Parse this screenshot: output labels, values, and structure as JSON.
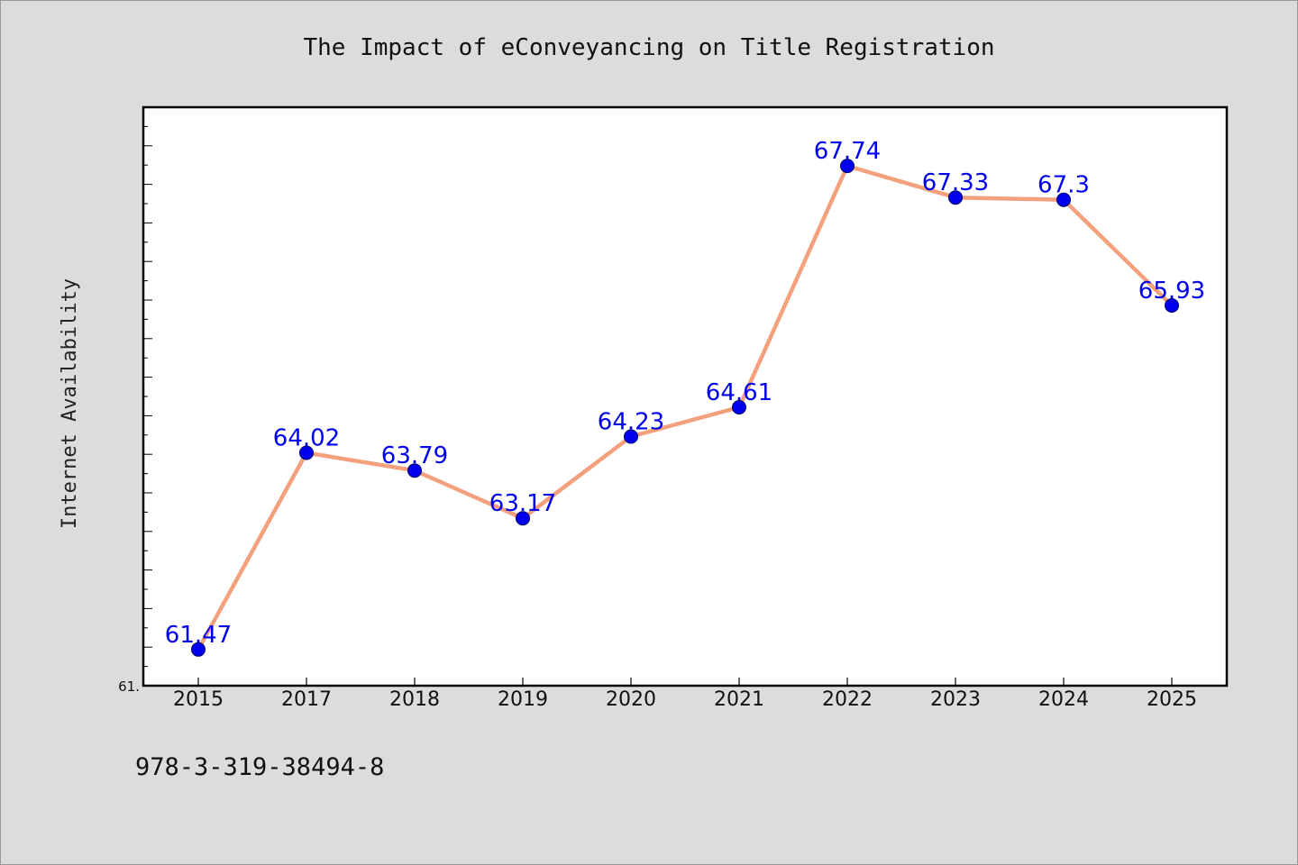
{
  "chart_data": {
    "type": "line",
    "title": "The Impact of eConveyancing on Title Registration",
    "xlabel": "",
    "ylabel": "Internet Availability",
    "categories": [
      "2015",
      "2017",
      "2018",
      "2019",
      "2020",
      "2021",
      "2022",
      "2023",
      "2024",
      "2025"
    ],
    "series": [
      {
        "values": [
          61.47,
          64.02,
          63.79,
          63.17,
          64.23,
          64.61,
          67.74,
          67.33,
          67.3,
          65.93
        ],
        "data_labels": [
          "61.47",
          "64.02",
          "63.79",
          "63.17",
          "64.23",
          "64.61",
          "67.74",
          "67.33",
          "67.3",
          "65.93"
        ]
      }
    ],
    "ylim": [
      61.0,
      68.5
    ],
    "ytick_labels": [
      "61."
    ],
    "grid": false,
    "colors": {
      "line": "#f4a07c",
      "marker": "#0000ee",
      "data_label": "#0000ee",
      "plot_background": "#ffffff",
      "page_background": "#dcdcdc"
    }
  },
  "footer": {
    "isbn": "978-3-319-38494-8"
  }
}
